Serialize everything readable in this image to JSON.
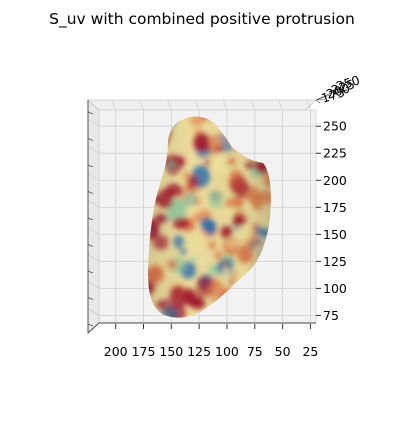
{
  "chart_data": {
    "type": "surface3d",
    "title": "S_uv with combined positive protrusion",
    "view": "top-down oblique",
    "grid": true,
    "colormap": "Spectral (red-yellow-green-blue)",
    "x_axis": {
      "ticks": [
        "200",
        "175",
        "150",
        "125",
        "100",
        "75",
        "50",
        "25"
      ],
      "range": [
        215,
        20
      ],
      "label": ""
    },
    "y_axis": {
      "ticks": [
        "250",
        "225",
        "200",
        "175",
        "150",
        "125",
        "100",
        "75"
      ],
      "range": [
        265,
        68
      ],
      "label": ""
    },
    "z_axis": {
      "ticks": [
        "175",
        "200",
        "225",
        "250"
      ],
      "label": ""
    },
    "surface": {
      "shape": "irregular blob with protrusion",
      "colors": {
        "low": "#2a6eac",
        "mid_low": "#8cc8a0",
        "mid": "#f4e9a1",
        "mid_high": "#e07a4a",
        "high": "#a3152e"
      }
    }
  }
}
